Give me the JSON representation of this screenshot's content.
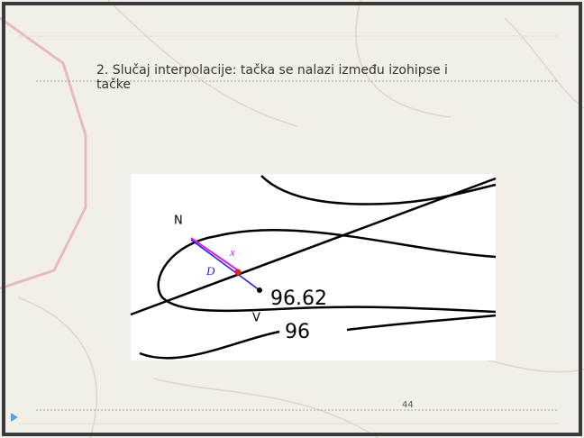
{
  "slide": {
    "title": "2. Slučaj interpolacije: tačka se nalazi između izohipse i tačke",
    "page_number": "44"
  },
  "figure": {
    "point_n": "N",
    "segment_x": "x",
    "segment_d": "D",
    "point_value": "96.62",
    "point_v": "V",
    "contour_label": "96"
  }
}
